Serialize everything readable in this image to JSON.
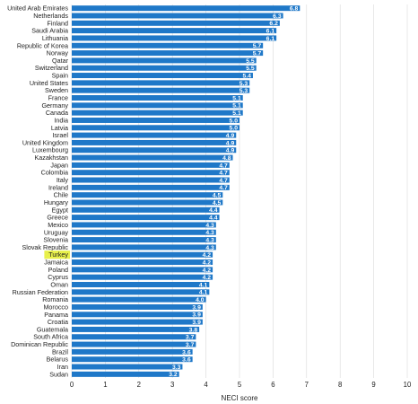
{
  "chart_data": {
    "type": "bar",
    "orientation": "horizontal",
    "title": "",
    "xlabel": "NECI score",
    "ylabel": "",
    "xlim": [
      0,
      10
    ],
    "x_ticks": [
      "0",
      "1",
      "2",
      "3",
      "4",
      "5",
      "6",
      "7",
      "8",
      "9",
      "10"
    ],
    "grid": true,
    "bar_color": "#1f78c8",
    "highlight_color": "#e8f04a",
    "highlight_category": "Turkey",
    "categories": [
      "United Arab Emirates",
      "Netherlands",
      "Finland",
      "Saudi Arabia",
      "Lithuania",
      "Republic of Korea",
      "Norway",
      "Qatar",
      "Switzerland",
      "Spain",
      "United States",
      "Sweden",
      "France",
      "Germany",
      "Canada",
      "India",
      "Latvia",
      "Israel",
      "United Kingdom",
      "Luxembourg",
      "Kazakhstan",
      "Japan",
      "Colombia",
      "Italy",
      "Ireland",
      "Chile",
      "Hungary",
      "Egypt",
      "Greece",
      "Mexico",
      "Uruguay",
      "Slovenia",
      "Slovak Republic",
      "Turkey",
      "Jamaica",
      "Poland",
      "Cyprus",
      "Oman",
      "Russian Federation",
      "Romania",
      "Morocco",
      "Panama",
      "Croatia",
      "Guatemala",
      "South Africa",
      "Dominican Republic",
      "Brazil",
      "Belarus",
      "Iran",
      "Sudan"
    ],
    "values": [
      6.8,
      6.3,
      6.2,
      6.1,
      6.1,
      5.7,
      5.7,
      5.5,
      5.5,
      5.4,
      5.3,
      5.3,
      5.1,
      5.1,
      5.1,
      5.0,
      5.0,
      4.9,
      4.9,
      4.9,
      4.8,
      4.7,
      4.7,
      4.7,
      4.7,
      4.5,
      4.5,
      4.4,
      4.4,
      4.3,
      4.3,
      4.3,
      4.3,
      4.2,
      4.2,
      4.2,
      4.2,
      4.1,
      4.1,
      4.0,
      3.9,
      3.9,
      3.9,
      3.8,
      3.7,
      3.7,
      3.6,
      3.6,
      3.3,
      3.2
    ],
    "value_labels": [
      "6.8",
      "6.3",
      "6.2",
      "6.1",
      "6.1",
      "5.7",
      "5.7",
      "5.5",
      "5.5",
      "5.4",
      "5.3",
      "5.3",
      "5.1",
      "5.1",
      "5.1",
      "5.0",
      "5.0",
      "4.9",
      "4.9",
      "4.9",
      "4.8",
      "4.7",
      "4.7",
      "4.7",
      "4.7",
      "4.5",
      "4.5",
      "4.4",
      "4.4",
      "4.3",
      "4.3",
      "4.3",
      "4.3",
      "4.2",
      "4.2",
      "4.2",
      "4.2",
      "4.1",
      "4.1",
      "4.0",
      "3.9",
      "3.9",
      "3.9",
      "3.8",
      "3.7",
      "3.7",
      "3.6",
      "3.6",
      "3.3",
      "3.2"
    ]
  }
}
